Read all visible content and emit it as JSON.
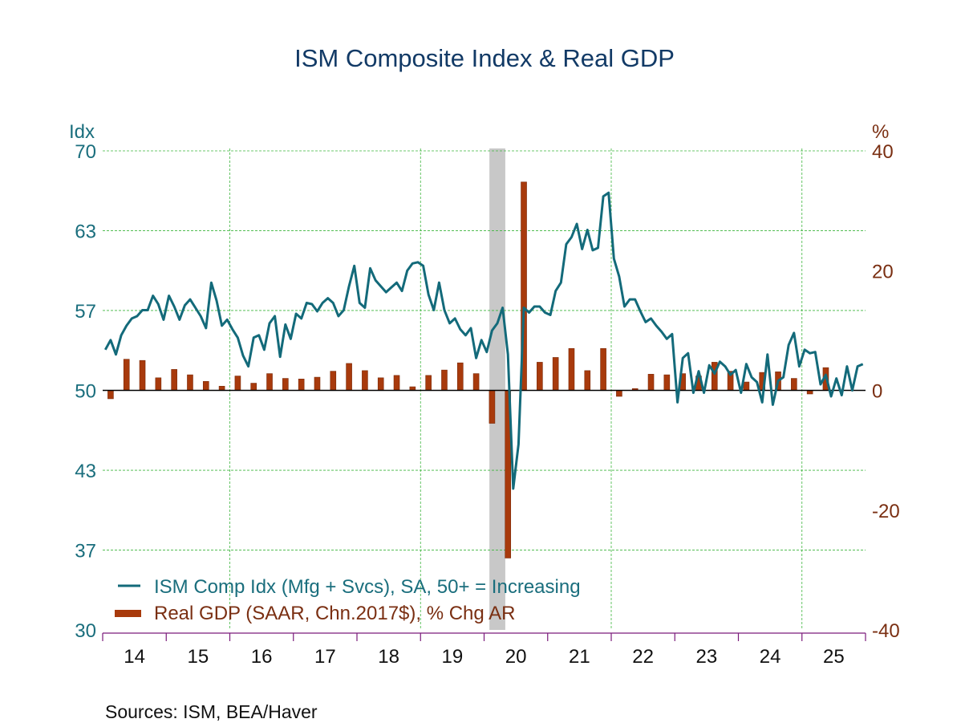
{
  "chart_data": {
    "type": "bar+line",
    "title": "ISM Composite Index & Real GDP",
    "left_axis": {
      "unit_label": "Idx",
      "range": [
        30,
        70
      ],
      "ticks": [
        70,
        63.33,
        56.67,
        50,
        43.33,
        36.67,
        30
      ],
      "tick_labels": [
        "70",
        "63",
        "57",
        "50",
        "43",
        "37",
        "30"
      ],
      "color": "#1a6e7d"
    },
    "right_axis": {
      "unit_label": "%",
      "range": [
        -40,
        40
      ],
      "ticks": [
        40,
        20,
        0,
        -20,
        -40
      ],
      "tick_labels": [
        "40",
        "20",
        "0",
        "-20",
        "-40"
      ],
      "color": "#7a2f12"
    },
    "x_axis": {
      "start_year": 2014,
      "end_year": 2025,
      "tick_labels": [
        "14",
        "15",
        "16",
        "17",
        "18",
        "19",
        "20",
        "21",
        "22",
        "23",
        "24",
        "25"
      ]
    },
    "grid": true,
    "legend_position": "bottom-left",
    "recession_shading": [
      {
        "start": "2020-02",
        "end": "2020-04",
        "color": "#c8c8c8"
      }
    ],
    "series": [
      {
        "name": "ISM Comp Idx (Mfg + Svcs), SA, 50+ = Increasing",
        "type": "line",
        "axis": "left",
        "color": "#136a7a",
        "frequency": "monthly",
        "start": "2014-01",
        "values": [
          53.4,
          54.2,
          53.0,
          54.6,
          55.4,
          56.0,
          56.2,
          56.7,
          56.7,
          57.9,
          57.2,
          55.9,
          57.9,
          57.0,
          55.9,
          57.1,
          57.6,
          56.9,
          56.2,
          55.2,
          59.0,
          57.5,
          55.4,
          55.9,
          55.1,
          54.4,
          52.9,
          52.0,
          54.4,
          54.6,
          53.4,
          55.6,
          56.2,
          52.8,
          55.5,
          54.3,
          56.4,
          56.0,
          57.3,
          57.2,
          56.6,
          57.3,
          57.7,
          57.3,
          56.2,
          56.7,
          58.7,
          60.4,
          57.3,
          56.9,
          60.2,
          59.2,
          58.7,
          58.2,
          58.6,
          59.0,
          58.3,
          60.0,
          60.6,
          60.7,
          60.4,
          58.0,
          56.7,
          59.0,
          56.7,
          55.6,
          56.0,
          55.1,
          54.6,
          55.2,
          52.7,
          54.2,
          53.2,
          55.0,
          55.6,
          56.9,
          53.0,
          41.8,
          45.5,
          56.9,
          56.5,
          57.0,
          57.0,
          56.5,
          56.3,
          58.3,
          59.0,
          62.2,
          62.8,
          63.9,
          61.8,
          63.4,
          61.7,
          61.9,
          66.2,
          66.5,
          61.0,
          59.5,
          57.0,
          57.6,
          57.6,
          56.6,
          55.7,
          56.0,
          55.4,
          54.9,
          54.3,
          54.7,
          49.0,
          52.7,
          53.1,
          49.8,
          51.6,
          49.8,
          52.1,
          51.4,
          52.4,
          52.0,
          51.3,
          51.7,
          49.8,
          52.2,
          51.1,
          50.7,
          49.0,
          53.0,
          48.8,
          50.8,
          51.1,
          53.8,
          54.8,
          52.0,
          53.4,
          53.1,
          53.2,
          50.5,
          51.3,
          49.5,
          51.0,
          49.6,
          52.0,
          50.0,
          52.0,
          52.2
        ]
      },
      {
        "name": "Real GDP (SAAR, Chn.2017$), % Chg AR",
        "type": "bar",
        "axis": "right",
        "color": "#a83a0c",
        "frequency": "quarterly",
        "start": "2014-Q1",
        "values": [
          -1.4,
          5.2,
          5.0,
          2.1,
          3.5,
          2.6,
          1.5,
          0.7,
          2.4,
          1.2,
          2.8,
          2.0,
          1.9,
          2.2,
          3.2,
          4.5,
          3.3,
          2.1,
          2.5,
          0.6,
          2.5,
          3.4,
          4.6,
          2.8,
          -5.5,
          -28.0,
          34.8,
          4.7,
          5.5,
          7.0,
          3.3,
          7.0,
          -1.0,
          0.3,
          2.7,
          2.6,
          2.8,
          2.4,
          4.7,
          3.2,
          1.4,
          3.0,
          3.1,
          2.0,
          -0.6,
          3.8
        ]
      }
    ],
    "legend": [
      {
        "label": "ISM Comp Idx (Mfg + Svcs), SA, 50+ = Increasing",
        "color": "#136a7a",
        "kind": "line"
      },
      {
        "label": "Real GDP (SAAR, Chn.2017$), % Chg AR",
        "color": "#a83a0c",
        "kind": "bar"
      }
    ],
    "source": "Sources:  ISM, BEA/Haver"
  }
}
